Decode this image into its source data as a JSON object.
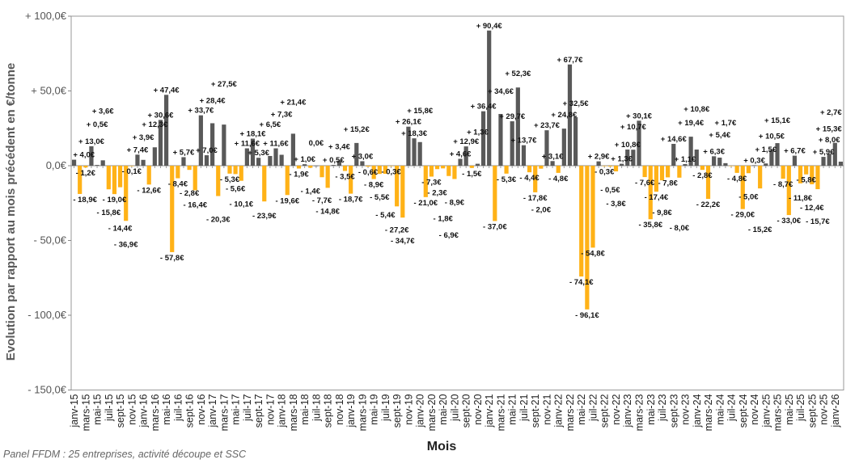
{
  "chart_data": {
    "type": "bar",
    "ylabel": "Evolution par rapport au mois précédent en €/tonne",
    "xlabel": "Mois",
    "ylim": [
      -150,
      100
    ],
    "y_ticks": [
      "+ 100,0€",
      "+ 50,0€",
      "0,0€",
      "- 50,0€",
      "- 100,0€",
      "- 150,0€"
    ],
    "y_tick_values": [
      100,
      50,
      0,
      -50,
      -100,
      -150
    ],
    "grid": false,
    "colors": {
      "positive": "#595959",
      "negative": "#FFB217"
    },
    "tick_labels": [
      "janv-15",
      "mars-15",
      "mai-15",
      "juil-15",
      "sept-15",
      "nov-15",
      "janv-16",
      "mars-16",
      "mai-16",
      "juil-16",
      "sept-16",
      "nov-16",
      "janv-17",
      "mars-17",
      "mai-17",
      "juil-17",
      "sept-17",
      "nov-17",
      "janv-18",
      "mars-18",
      "mai-18",
      "juil-18",
      "sept-18",
      "nov-18",
      "janv-19",
      "mars-19",
      "mai-19",
      "juil-19",
      "sept-19",
      "nov-19",
      "janv-20",
      "mars-20",
      "mai-20",
      "juil-20",
      "sept-20",
      "nov-20",
      "janv-21",
      "mars-21",
      "mai-21",
      "juil-21",
      "sept-21",
      "nov-21",
      "janv-22",
      "mars-22",
      "mai-22",
      "juil-22",
      "sept-22",
      "nov-22",
      "janv-23",
      "mars-23",
      "mai-23",
      "juil-23",
      "sept-23",
      "nov-23",
      "janv-24",
      "mars-24",
      "mai-24",
      "juil-24",
      "sept-24",
      "nov-24",
      "janv-25",
      "mars-25",
      "mai-25",
      "juil-25",
      "sept-25",
      "nov-25",
      "janv-26"
    ],
    "values": [
      4.0,
      -18.9,
      -1.2,
      13.0,
      0.5,
      3.6,
      -15.8,
      -19.0,
      -14.4,
      -36.9,
      -0.1,
      7.4,
      3.9,
      -12.6,
      12.3,
      30.6,
      47.4,
      -57.8,
      -8.4,
      5.7,
      -2.8,
      -16.4,
      33.7,
      7.0,
      28.4,
      -20.3,
      27.5,
      -5.3,
      -5.6,
      -10.1,
      11.6,
      18.1,
      5.3,
      -23.9,
      6.5,
      11.6,
      7.3,
      -19.6,
      21.4,
      -1.9,
      1.0,
      -1.4,
      0.0,
      -7.7,
      -14.8,
      0.5,
      3.4,
      -3.5,
      -18.7,
      15.2,
      3.0,
      -0.6,
      -8.9,
      -5.5,
      -5.4,
      -0.3,
      -27.2,
      -34.7,
      26.1,
      18.3,
      15.8,
      -21.0,
      -7.3,
      -2.3,
      -1.8,
      -6.9,
      -8.9,
      4.6,
      12.9,
      -1.5,
      1.3,
      36.4,
      90.4,
      -37.0,
      34.6,
      -5.3,
      29.7,
      52.3,
      13.7,
      -4.4,
      -17.8,
      -2.0,
      23.7,
      3.1,
      -4.8,
      24.8,
      67.7,
      32.5,
      -74.1,
      -96.1,
      -54.8,
      2.9,
      -0.3,
      -0.5,
      -3.8,
      1.3,
      10.8,
      10.7,
      30.1,
      -7.6,
      -35.8,
      -17.4,
      -9.8,
      -7.8,
      14.6,
      -8.0,
      1.1,
      19.4,
      10.8,
      -2.8,
      -22.2,
      6.3,
      5.4,
      1.7,
      -0.3,
      -4.8,
      -29.0,
      -5.0,
      0.3,
      -15.2,
      1.5,
      10.5,
      15.1,
      -8.7,
      -33.0,
      6.7,
      -11.8,
      -5.8,
      -12.4,
      -15.7,
      5.9,
      8.0,
      15.3,
      2.7
    ],
    "data_labels": [
      "+ 4,0€",
      "- 18,9€",
      "- 1,2€",
      "+ 13,0€",
      "+ 0,5€",
      "+ 3,6€",
      "- 15,8€",
      "- 19,0€",
      "- 14,4€",
      "- 36,9€",
      "- 0,1€",
      "+ 7,4€",
      "+ 3,9€",
      "- 12,6€",
      "+ 12,3€",
      "+ 30,6€",
      "+ 47,4€",
      "- 57,8€",
      "- 8,4€",
      "+ 5,7€",
      "- 2,8€",
      "- 16,4€",
      "+ 33,7€",
      "+ 7,0€",
      "+ 28,4€",
      "- 20,3€",
      "+ 27,5€",
      "- 5,3€",
      "- 5,6€",
      "- 10,1€",
      "+ 11,6€",
      "+ 18,1€",
      "+ 5,3€",
      "- 23,9€",
      "+ 6,5€",
      "+ 11,6€",
      "+ 7,3€",
      "- 19,6€",
      "+ 21,4€",
      "- 1,9€",
      "+ 1,0€",
      "- 1,4€",
      "0,0€",
      "- 7,7€",
      "- 14,8€",
      "+ 0,5€",
      "+ 3,4€",
      "- 3,5€",
      "- 18,7€",
      "+ 15,2€",
      "+ 3,0€",
      "- 0,6€",
      "- 8,9€",
      "- 5,5€",
      "- 5,4€",
      "- 0,3€",
      "- 27,2€",
      "- 34,7€",
      "+ 26,1€",
      "+ 18,3€",
      "+ 15,8€",
      "- 21,0€",
      "- 7,3€",
      "- 2,3€",
      "- 1,8€",
      "- 6,9€",
      "- 8,9€",
      "+ 4,6€",
      "+ 12,9€",
      "- 1,5€",
      "+ 1,3€",
      "+ 36,4€",
      "+ 90,4€",
      "- 37,0€",
      "+ 34,6€",
      "- 5,3€",
      "+ 29,7€",
      "+ 52,3€",
      "+ 13,7€",
      "- 4,4€",
      "- 17,8€",
      "- 2,0€",
      "+ 23,7€",
      "+ 3,1€",
      "- 4,8€",
      "+ 24,8€",
      "+ 67,7€",
      "+ 32,5€",
      "- 74,1€",
      "- 96,1€",
      "- 54,8€",
      "+ 2,9€",
      "- 0,3€",
      "- 0,5€",
      "- 3,8€",
      "+ 1,3€",
      "+ 10,8€",
      "+ 10,7€",
      "+ 30,1€",
      "- 7,6€",
      "- 35,8€",
      "- 17,4€",
      "- 9,8€",
      "- 7,8€",
      "+ 14,6€",
      "- 8,0€",
      "+ 1,1€",
      "+ 19,4€",
      "+ 10,8€",
      "- 2,8€",
      "- 22,2€",
      "+ 6,3€",
      "+ 5,4€",
      "+ 1,7€",
      null,
      "- 4,8€",
      "- 29,0€",
      "- 5,0€",
      "+ 0,3€",
      "- 15,2€",
      "+ 1,5€",
      "+ 10,5€",
      "+ 15,1€",
      "- 8,7€",
      "- 33,0€",
      "+ 6,7€",
      "- 11,8€",
      "- 5,8€",
      "- 12,4€",
      "- 15,7€",
      "+ 5,9€",
      "+ 8,0€",
      "+ 15,3€",
      "+ 2,7€"
    ]
  },
  "footnote": "Panel FFDM : 25 entreprises, activité découpe et SSC"
}
